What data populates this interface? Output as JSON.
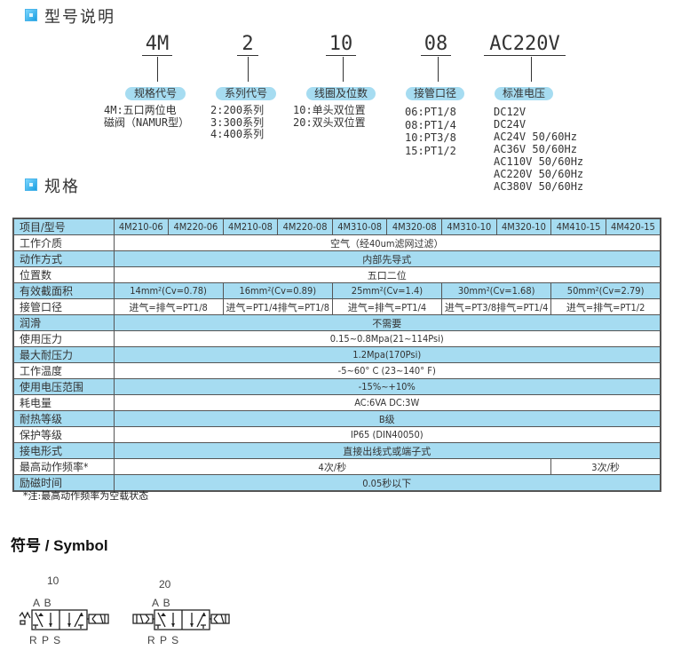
{
  "section1": {
    "title": "型号说明"
  },
  "model_code": {
    "parts": [
      {
        "code": "4M",
        "label": "规格代号",
        "options": [
          "4M:五口两位电",
          "磁阀（NAMUR型）"
        ]
      },
      {
        "code": "2",
        "label": "系列代号",
        "options": [
          "2:200系列",
          "3:300系列",
          "4:400系列"
        ]
      },
      {
        "code": "10",
        "label": "线圈及位数",
        "options": [
          "10:单头双位置",
          "20:双头双位置"
        ]
      },
      {
        "code": "08",
        "label": "接管口径",
        "options": [
          "06:PT1/8",
          "08:PT1/4",
          "10:PT3/8",
          "15:PT1/2"
        ]
      },
      {
        "code": "AC220V",
        "label": "标准电压",
        "options": [
          "DC12V",
          "DC24V",
          "AC24V 50/60Hz",
          "AC36V 50/60Hz",
          "AC110V 50/60Hz",
          "AC220V 50/60Hz",
          "AC380V 50/60Hz"
        ]
      }
    ]
  },
  "section2": {
    "title": "规格"
  },
  "spec_table": {
    "header": [
      "项目/型号",
      "4M210-06",
      "4M220-06",
      "4M210-08",
      "4M220-08",
      "4M310-08",
      "4M320-08",
      "4M310-10",
      "4M320-10",
      "4M410-15",
      "4M420-15"
    ],
    "rows": [
      {
        "label": "工作介质",
        "values": [
          "空气（经40um滤网过滤）"
        ]
      },
      {
        "label": "动作方式",
        "values": [
          "内部先导式"
        ]
      },
      {
        "label": "位置数",
        "values": [
          "五口二位"
        ]
      },
      {
        "label": "有效截面积",
        "values": [
          "14mm²(Cv=0.78)",
          "16mm²(Cv=0.89)",
          "25mm²(Cv=1.4)",
          "30mm²(Cv=1.68)",
          "50mm²(Cv=2.79)"
        ]
      },
      {
        "label": "接管口径",
        "values": [
          "进气=排气=PT1/8",
          "进气=PT1/4排气=PT1/8",
          "进气=排气=PT1/4",
          "进气=PT3/8排气=PT1/4",
          "进气=排气=PT1/2"
        ]
      },
      {
        "label": "润滑",
        "values": [
          "不需要"
        ]
      },
      {
        "label": "使用压力",
        "values": [
          "0.15~0.8Mpa(21~114Psi)"
        ]
      },
      {
        "label": "最大耐压力",
        "values": [
          "1.2Mpa(170Psi)"
        ]
      },
      {
        "label": "工作温度",
        "values": [
          "-5~60° C (23~140° F)"
        ]
      },
      {
        "label": "使用电压范围",
        "values": [
          "-15%~+10%"
        ]
      },
      {
        "label": "耗电量",
        "values": [
          "AC:6VA      DC:3W"
        ]
      },
      {
        "label": "耐热等级",
        "values": [
          "B级"
        ]
      },
      {
        "label": "保护等级",
        "values": [
          "IP65 (DIN40050)"
        ]
      },
      {
        "label": "接电形式",
        "values": [
          "直接出线式或端子式"
        ]
      },
      {
        "label": "最高动作频率*",
        "values": [
          "4次/秒",
          "3次/秒"
        ]
      },
      {
        "label": "励磁时间",
        "values": [
          "0.05秒以下"
        ]
      }
    ],
    "note": "*注:最高动作频率为空载状态"
  },
  "symbol": {
    "title": "符号 / Symbol",
    "diagrams": [
      {
        "code": "10",
        "top_ports": "A B",
        "bottom_ports": "R P S"
      },
      {
        "code": "20",
        "top_ports": "A B",
        "bottom_ports": "R P S"
      }
    ]
  },
  "colors": {
    "accent": "#a6dcf1",
    "icon": "#1a9ee0"
  }
}
